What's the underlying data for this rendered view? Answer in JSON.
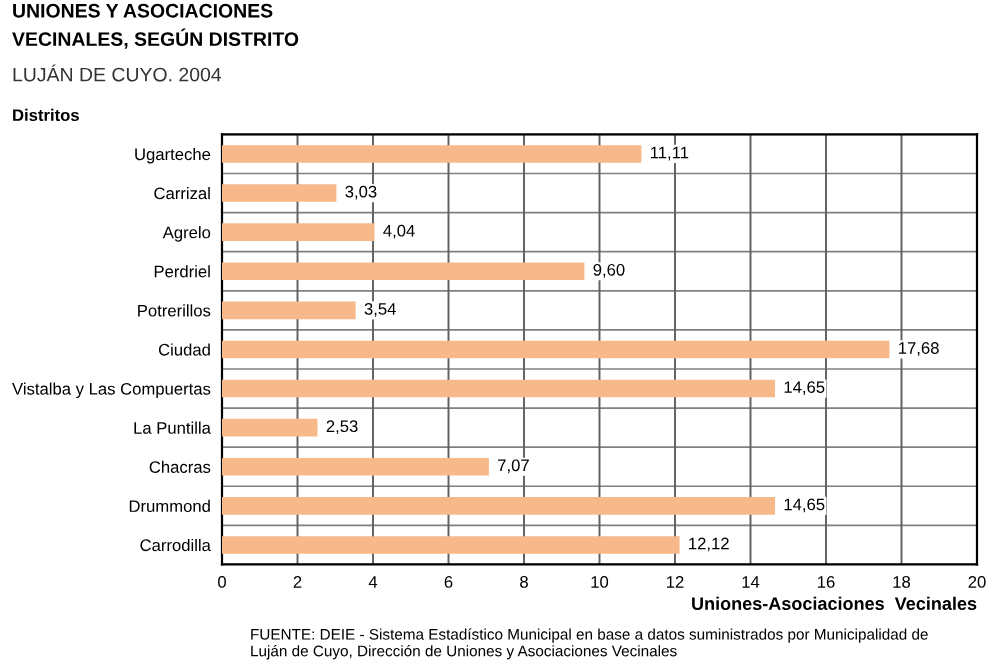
{
  "chart_data": {
    "type": "bar",
    "orientation": "horizontal",
    "title": "UNIONES Y ASOCIACIONES\nVECINALES, SEGÚN DISTRITO",
    "subtitle": "LUJÁN DE CUYO. 2004",
    "ylabel": "Distritos",
    "xlabel": "Uniones-Asociaciones  Vecinales",
    "categories": [
      "Ugarteche",
      "Carrizal",
      "Agrelo",
      "Perdriel",
      "Potrerillos",
      "Ciudad",
      "Vistalba y Las Compuertas",
      "La Puntilla",
      "Chacras",
      "Drummond",
      "Carrodilla"
    ],
    "values": [
      11.11,
      3.03,
      4.04,
      9.6,
      3.54,
      17.68,
      14.65,
      2.53,
      7.07,
      14.65,
      12.12
    ],
    "value_labels": [
      "11,11",
      "3,03",
      "4,04",
      "9,60",
      "3,54",
      "17,68",
      "14,65",
      "2,53",
      "7,07",
      "14,65",
      "12,12"
    ],
    "color": "#f7b98a",
    "xlim": [
      0,
      20
    ],
    "xticks": [
      0,
      2,
      4,
      6,
      8,
      10,
      12,
      14,
      16,
      18,
      20
    ],
    "grid": "x",
    "annotations": [
      "FUENTE: DEIE - Sistema Estadístico Municipal en base a datos suministrados por Municipalidad de\nLuján de Cuyo, Dirección de Uniones y Asociaciones Vecinales"
    ]
  }
}
